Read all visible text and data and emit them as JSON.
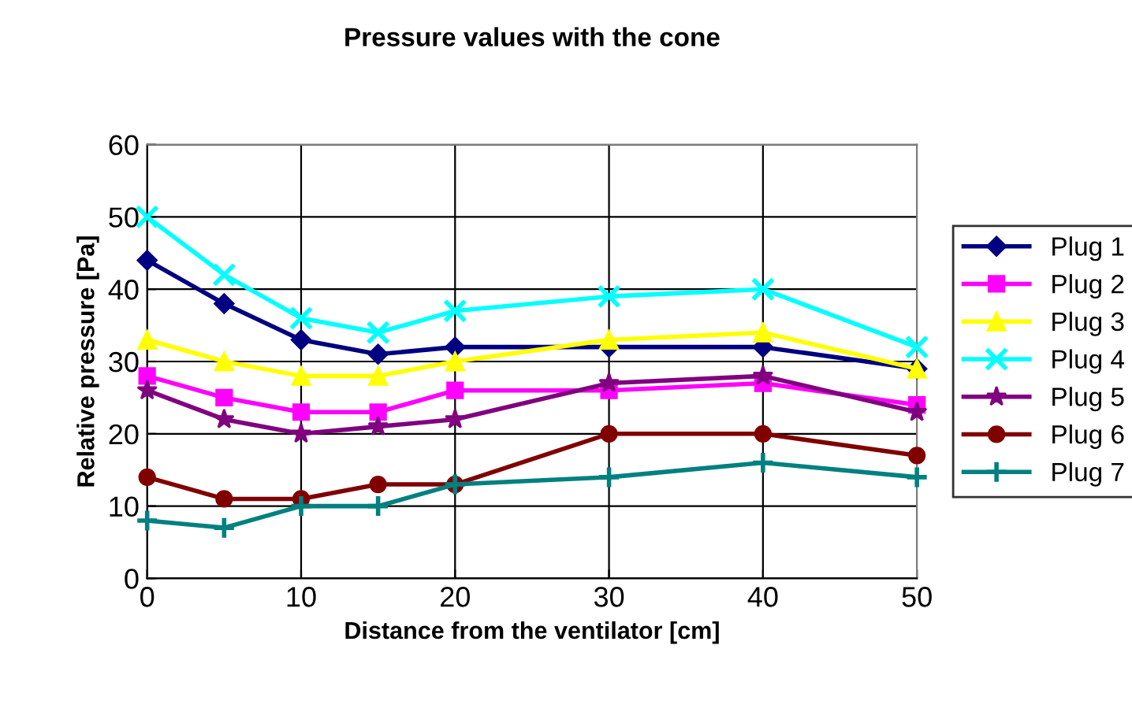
{
  "chart_data": {
    "type": "line",
    "title": "Pressure values with the cone",
    "xlabel": "Distance from the ventilator [cm]",
    "ylabel": "Relative pressure [Pa]",
    "x": [
      0,
      5,
      10,
      15,
      20,
      30,
      40,
      50
    ],
    "xlim": [
      0,
      50
    ],
    "xticks": [
      0,
      10,
      20,
      30,
      40,
      50
    ],
    "ylim": [
      0,
      60
    ],
    "yticks": [
      0,
      10,
      20,
      30,
      40,
      50,
      60
    ],
    "grid": true,
    "legend": "right",
    "series": [
      {
        "name": "Plug 1",
        "color": "#000080",
        "marker": "diamond",
        "values": [
          44,
          38,
          33,
          31,
          32,
          32,
          32,
          29
        ]
      },
      {
        "name": "Plug 2",
        "color": "#ff00ff",
        "marker": "square",
        "values": [
          28,
          25,
          23,
          23,
          26,
          26,
          27,
          24
        ]
      },
      {
        "name": "Plug 3",
        "color": "#ffff00",
        "marker": "triangle",
        "values": [
          33,
          30,
          28,
          28,
          30,
          33,
          34,
          29
        ]
      },
      {
        "name": "Plug 4",
        "color": "#00ffff",
        "marker": "cross",
        "values": [
          50,
          42,
          36,
          34,
          37,
          39,
          40,
          32
        ]
      },
      {
        "name": "Plug 5",
        "color": "#800080",
        "marker": "star",
        "values": [
          26,
          22,
          20,
          21,
          22,
          27,
          28,
          23
        ]
      },
      {
        "name": "Plug 6",
        "color": "#800000",
        "marker": "circle",
        "values": [
          14,
          11,
          11,
          13,
          13,
          20,
          20,
          17
        ]
      },
      {
        "name": "Plug 7",
        "color": "#008080",
        "marker": "plus",
        "values": [
          8,
          7,
          10,
          10,
          13,
          14,
          16,
          14
        ]
      }
    ]
  }
}
